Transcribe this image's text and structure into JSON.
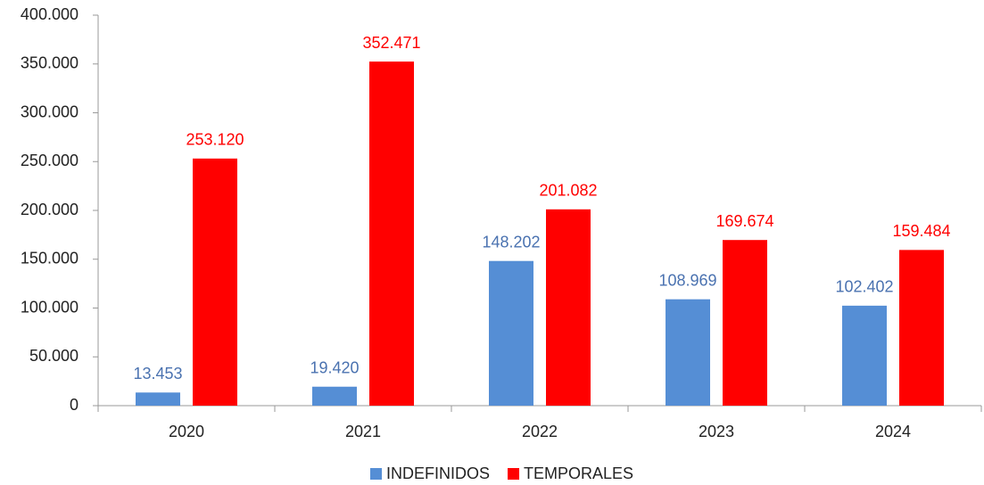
{
  "chart_data": {
    "type": "bar",
    "categories": [
      "2020",
      "2021",
      "2022",
      "2023",
      "2024"
    ],
    "series": [
      {
        "name": "INDEFINIDOS",
        "color": "#558ed5",
        "label_color": "#4a72b0",
        "values": [
          13453,
          19420,
          148202,
          108969,
          102402
        ],
        "value_labels": [
          "13.453",
          "19.420",
          "148.202",
          "108.969",
          "102.402"
        ]
      },
      {
        "name": "TEMPORALES",
        "color": "#ff0000",
        "label_color": "#ff0000",
        "values": [
          253120,
          352471,
          201082,
          169674,
          159484
        ],
        "value_labels": [
          "253.120",
          "352.471",
          "201.082",
          "169.674",
          "159.484"
        ]
      }
    ],
    "ylim": [
      0,
      400000
    ],
    "yticks": [
      0,
      {
        "value": 50000,
        "label": "50.000"
      },
      {
        "value": 100000,
        "label": "100.000"
      },
      {
        "value": 150000,
        "label": "150.000"
      },
      {
        "value": 200000,
        "label": "200.000"
      },
      {
        "value": 250000,
        "label": "250.000"
      },
      {
        "value": 300000,
        "label": "300.000"
      },
      {
        "value": 350000,
        "label": "350.000"
      },
      {
        "value": 400000,
        "label": "400.000"
      }
    ],
    "grid": false,
    "legend": "bottom"
  }
}
